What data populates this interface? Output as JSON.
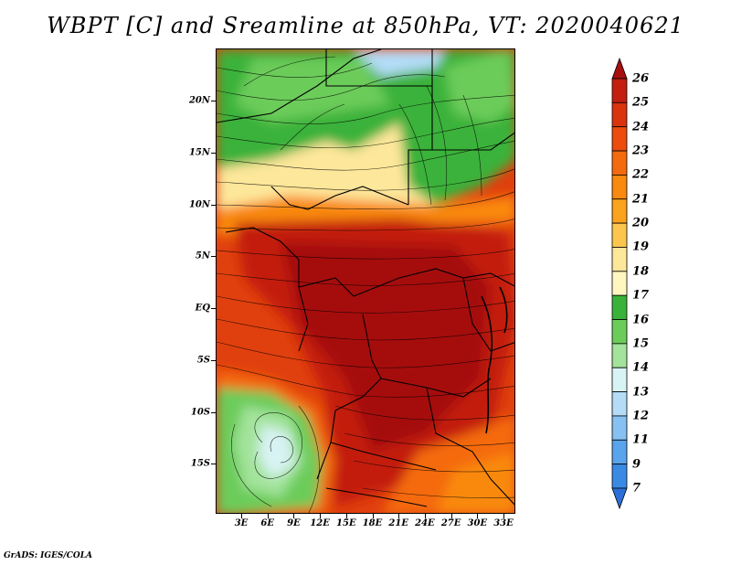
{
  "title": "WBPT [C] and Sreamline at 850hPa, VT: 2020040621",
  "credit": "GrADS: IGES/COLA",
  "lat_labels": [
    "20N",
    "15N",
    "10N",
    "5N",
    "EQ",
    "5S",
    "10S",
    "15S"
  ],
  "lon_labels": [
    "3E",
    "6E",
    "9E",
    "12E",
    "15E",
    "18E",
    "21E",
    "24E",
    "27E",
    "30E",
    "33E"
  ],
  "colorbar": {
    "labels": [
      "26",
      "25",
      "24",
      "23",
      "22",
      "21",
      "20",
      "19",
      "18",
      "17",
      "16",
      "15",
      "14",
      "13",
      "12",
      "11",
      "9",
      "7"
    ],
    "colors": [
      "#a50f0f",
      "#c31e0e",
      "#d9340e",
      "#ec4d0c",
      "#f46a0e",
      "#f9890f",
      "#fba21e",
      "#fcc64e",
      "#fde79a",
      "#fff6c0",
      "#3ab23a",
      "#6ccc5a",
      "#a3e39b",
      "#d8f3f3",
      "#b4dcf7",
      "#86c1f2",
      "#5aa3ed",
      "#3a8ae4",
      "#2b6fd7"
    ]
  }
}
